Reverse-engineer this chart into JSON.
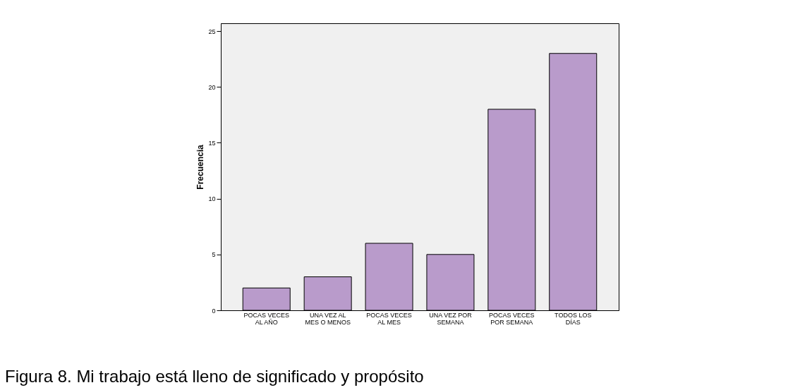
{
  "chart_data": {
    "type": "bar",
    "ylabel": "Frecuencia",
    "categories": [
      "POCAS VECES\nAL AÑO",
      "UNA VEZ AL\nMES O MENOS",
      "POCAS VECES\nAL MES",
      "UNA VEZ POR\nSEMANA",
      "POCAS VECES\nPOR SEMANA",
      "TODOS LOS\nDÍAS"
    ],
    "values": [
      2,
      3,
      6,
      5,
      18,
      23
    ],
    "color": "#b99bcb",
    "ylim": [
      0,
      25.7
    ],
    "yticks": [
      0,
      5,
      10,
      15,
      20,
      25
    ],
    "grid": false,
    "annotations": [
      "Figura 8. Mi trabajo está lleno de significado y propósito"
    ]
  }
}
